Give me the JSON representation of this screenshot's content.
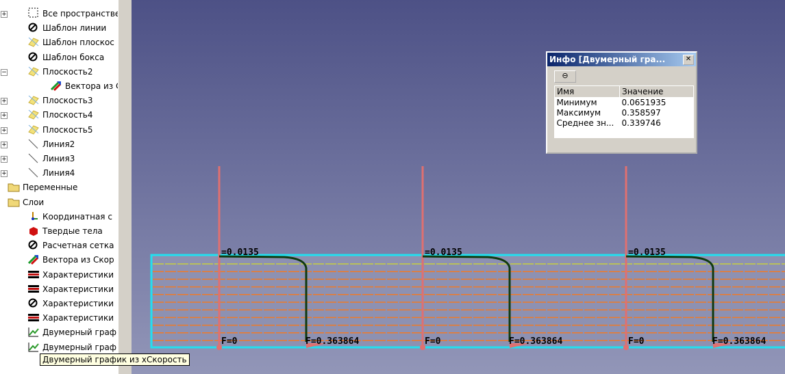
{
  "tree": {
    "items": [
      "Все пространстве",
      "Шаблон линии",
      "Шаблон плоскос",
      "Шаблон бокса",
      "Плоскость2",
      "Вектора из С",
      "Плоскость3",
      "Плоскость4",
      "Плоскость5",
      "Линия2",
      "Линия3",
      "Линия4",
      "Переменные",
      "Слои",
      "Координатная с",
      "Твердые тела",
      "Расчетная сетка",
      "Вектора из Скор",
      "Характеристики",
      "Характеристики",
      "Характеристики",
      "Характеристики",
      "Двумерный граф",
      "Двумерный граф"
    ]
  },
  "tooltip": "Двумерный график из xСкорость",
  "info_window": {
    "title": "Инфо [Двумерный гра...",
    "columns": [
      "Имя",
      "Значение"
    ],
    "rows": [
      [
        "Минимум",
        "0.0651935"
      ],
      [
        "Максимум",
        "0.358597"
      ],
      [
        "Среднее зн...",
        "0.339746"
      ]
    ]
  },
  "viewport": {
    "plots": [
      {
        "top": "=0.0135",
        "start": "F=0",
        "end": "F=0.363864"
      },
      {
        "top": "=0.0135",
        "start": "F=0",
        "end": "F=0.363864"
      },
      {
        "top": "=0.0135",
        "start": "F=0",
        "end": "F=0.363864"
      }
    ]
  }
}
